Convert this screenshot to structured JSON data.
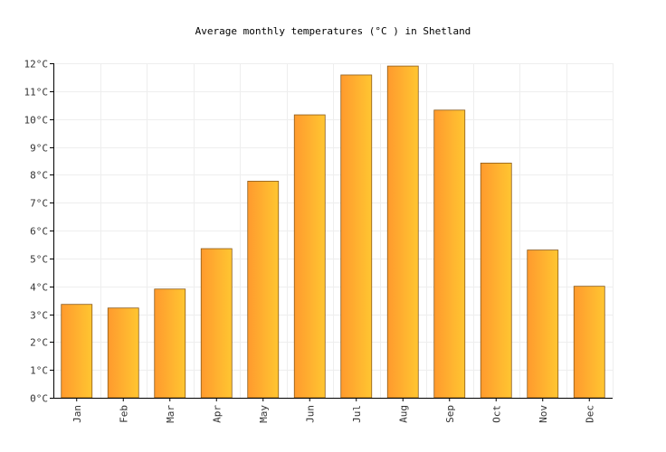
{
  "chart_data": {
    "type": "bar",
    "title": "Average monthly temperatures (°C ) in Shetland",
    "xlabel": "",
    "ylabel": "",
    "categories": [
      "Jan",
      "Feb",
      "Mar",
      "Apr",
      "May",
      "Jun",
      "Jul",
      "Aug",
      "Sep",
      "Oct",
      "Nov",
      "Dec"
    ],
    "values": [
      3.35,
      3.22,
      3.9,
      5.35,
      7.77,
      10.15,
      11.58,
      11.9,
      10.32,
      8.42,
      5.3,
      4.0
    ],
    "ylim": [
      0,
      12
    ],
    "y_ticks": [
      "0°C",
      "1°C",
      "2°C",
      "3°C",
      "4°C",
      "5°C",
      "6°C",
      "7°C",
      "8°C",
      "9°C",
      "10°C",
      "11°C",
      "12°C"
    ],
    "grid": true,
    "legend": "none",
    "colors": {
      "bar_start": "#ff9a2e",
      "bar_end": "#ffc631",
      "bar_stroke": "#8a5a1a"
    }
  }
}
